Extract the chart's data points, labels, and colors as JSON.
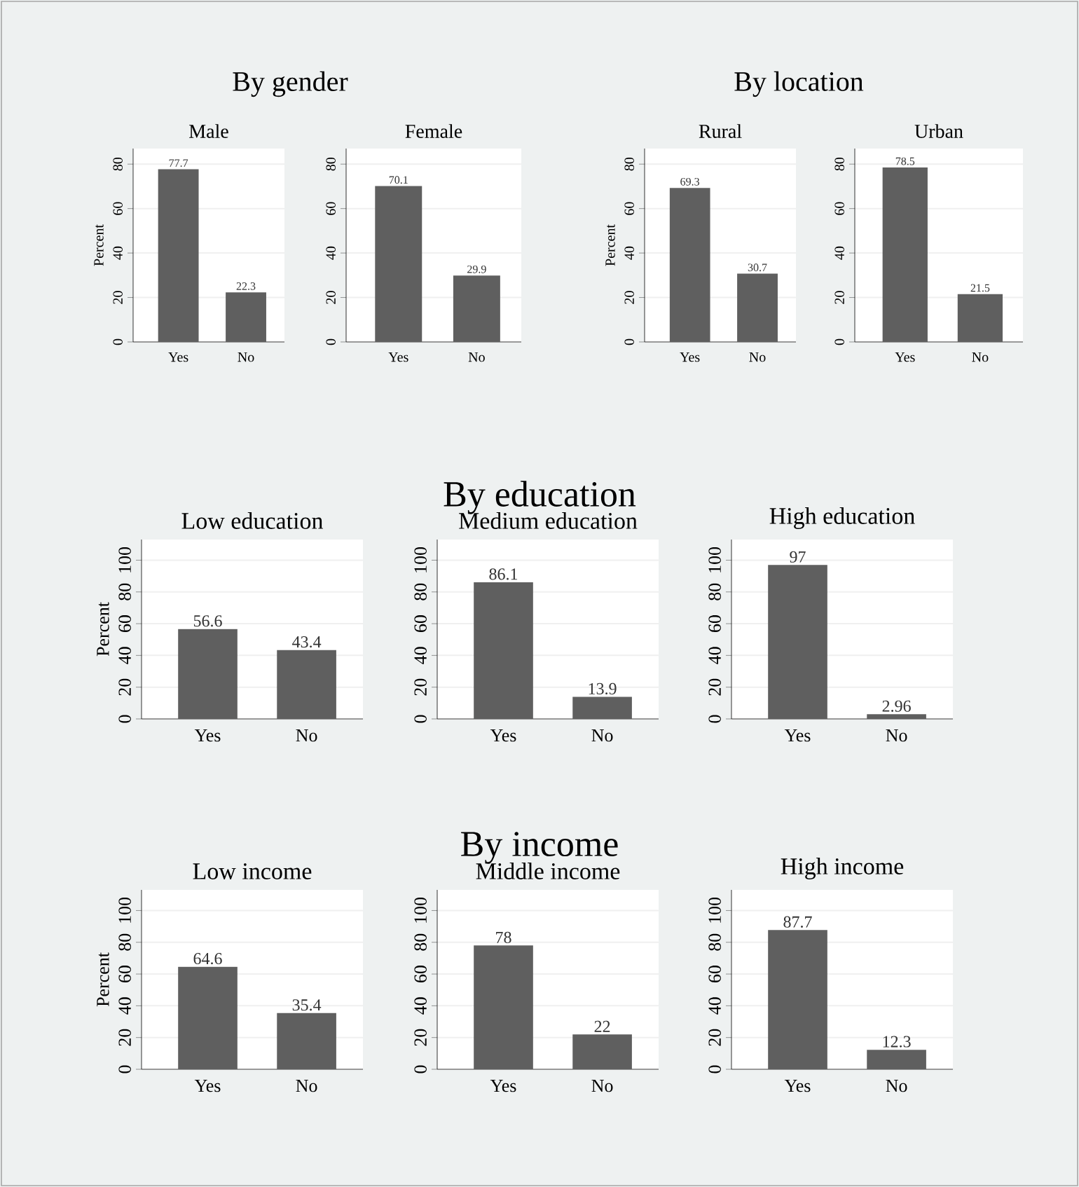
{
  "chart_data": [
    {
      "type": "other",
      "title": "By gender"
    },
    {
      "type": "bar",
      "title": "Male",
      "categories": [
        "Yes",
        "No"
      ],
      "values": [
        77.7,
        22.3
      ],
      "color": "#5f5f5f",
      "ylabel": "Percent",
      "ylim": [
        0,
        87
      ],
      "yticks": [
        0,
        20,
        40,
        60,
        80
      ],
      "grid": "y",
      "data_labels": true
    },
    {
      "type": "bar",
      "title": "Female",
      "categories": [
        "Yes",
        "No"
      ],
      "values": [
        70.1,
        29.9
      ],
      "color": "#5f5f5f",
      "ylim": [
        0,
        87
      ],
      "yticks": [
        0,
        20,
        40,
        60,
        80
      ],
      "grid": "y",
      "data_labels": true
    },
    {
      "type": "other",
      "title": "By location"
    },
    {
      "type": "bar",
      "title": "Rural",
      "categories": [
        "Yes",
        "No"
      ],
      "values": [
        69.3,
        30.7
      ],
      "color": "#5f5f5f",
      "ylabel": "Percent",
      "ylim": [
        0,
        87
      ],
      "yticks": [
        0,
        20,
        40,
        60,
        80
      ],
      "grid": "y",
      "data_labels": true
    },
    {
      "type": "bar",
      "title": "Urban",
      "categories": [
        "Yes",
        "No"
      ],
      "values": [
        78.5,
        21.5
      ],
      "color": "#5f5f5f",
      "ylim": [
        0,
        87
      ],
      "yticks": [
        0,
        20,
        40,
        60,
        80
      ],
      "grid": "y",
      "data_labels": true
    },
    {
      "type": "other",
      "title": "By education"
    },
    {
      "type": "bar",
      "title": "Low education",
      "categories": [
        "Yes",
        "No"
      ],
      "values": [
        56.6,
        43.4
      ],
      "color": "#5f5f5f",
      "ylabel": "Percent",
      "ylim": [
        0,
        113
      ],
      "yticks": [
        0,
        20,
        40,
        60,
        80,
        100
      ],
      "grid": "y",
      "data_labels": true
    },
    {
      "type": "bar",
      "title": "Medium education",
      "categories": [
        "Yes",
        "No"
      ],
      "values": [
        86.1,
        13.9
      ],
      "color": "#5f5f5f",
      "ylim": [
        0,
        113
      ],
      "yticks": [
        0,
        20,
        40,
        60,
        80,
        100
      ],
      "grid": "y",
      "data_labels": true
    },
    {
      "type": "bar",
      "title": "High education",
      "categories": [
        "Yes",
        "No"
      ],
      "values": [
        97,
        2.96
      ],
      "color": "#5f5f5f",
      "ylim": [
        0,
        113
      ],
      "yticks": [
        0,
        20,
        40,
        60,
        80,
        100
      ],
      "grid": "y",
      "data_labels": true
    },
    {
      "type": "other",
      "title": "By income"
    },
    {
      "type": "bar",
      "title": "Low income",
      "categories": [
        "Yes",
        "No"
      ],
      "values": [
        64.6,
        35.4
      ],
      "color": "#5f5f5f",
      "ylabel": "Percent",
      "ylim": [
        0,
        113
      ],
      "yticks": [
        0,
        20,
        40,
        60,
        80,
        100
      ],
      "grid": "y",
      "data_labels": true
    },
    {
      "type": "bar",
      "title": "Middle income",
      "categories": [
        "Yes",
        "No"
      ],
      "values": [
        78,
        22
      ],
      "color": "#5f5f5f",
      "ylim": [
        0,
        113
      ],
      "yticks": [
        0,
        20,
        40,
        60,
        80,
        100
      ],
      "grid": "y",
      "data_labels": true
    },
    {
      "type": "bar",
      "title": "High income",
      "categories": [
        "Yes",
        "No"
      ],
      "values": [
        87.7,
        12.3
      ],
      "color": "#5f5f5f",
      "ylim": [
        0,
        113
      ],
      "yticks": [
        0,
        20,
        40,
        60,
        80,
        100
      ],
      "grid": "y",
      "data_labels": true
    }
  ]
}
